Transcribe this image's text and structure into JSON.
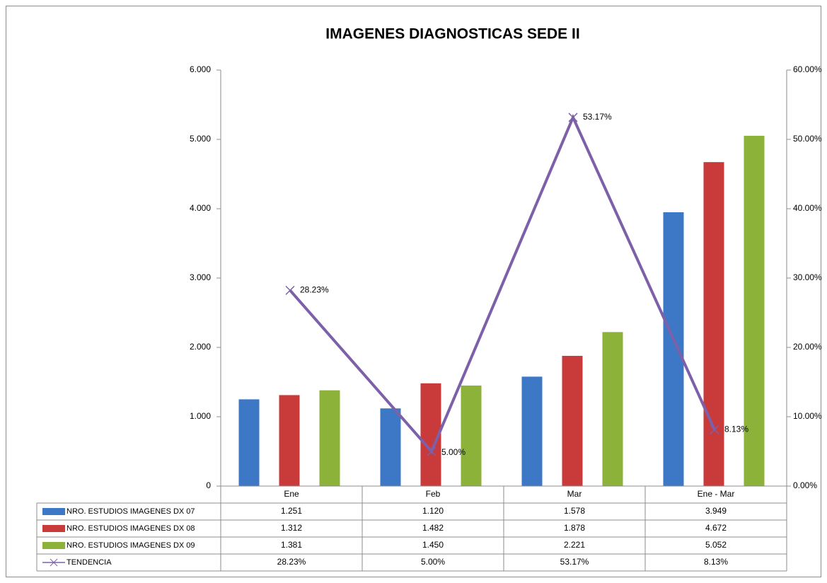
{
  "chart_data": {
    "type": "bar",
    "title": "IMAGENES DIAGNOSTICAS SEDE II",
    "categories": [
      "Ene",
      "Feb",
      "Mar",
      "Ene - Mar"
    ],
    "series": [
      {
        "name": "NRO. ESTUDIOS IMAGENES DX 07",
        "color": "#3c78c6",
        "values": [
          1251,
          1120,
          1578,
          3949
        ],
        "value_labels": [
          "1.251",
          "1.120",
          "1.578",
          "3.949"
        ]
      },
      {
        "name": "NRO. ESTUDIOS IMAGENES DX 08",
        "color": "#c93b3b",
        "values": [
          1312,
          1482,
          1878,
          4672
        ],
        "value_labels": [
          "1.312",
          "1.482",
          "1.878",
          "4.672"
        ]
      },
      {
        "name": "NRO. ESTUDIOS IMAGENES DX 09",
        "color": "#8db23a",
        "values": [
          1381,
          1450,
          2221,
          5052
        ],
        "value_labels": [
          "1.381",
          "1.450",
          "2.221",
          "5.052"
        ]
      },
      {
        "name": "TENDENCIA",
        "type": "line",
        "axis": "y2",
        "color": "#7d60a8",
        "values": [
          28.23,
          5.0,
          53.17,
          8.13
        ],
        "value_labels": [
          "28.23%",
          "5.00%",
          "53.17%",
          "8.13%"
        ]
      }
    ],
    "ylim": [
      0,
      6000
    ],
    "yticks": [
      0,
      {
        "value": 1000,
        "label": "1.000"
      },
      {
        "value": 2000,
        "label": "2.000"
      },
      {
        "value": 3000,
        "label": "3.000"
      },
      {
        "value": 4000,
        "label": "4.000"
      },
      {
        "value": 5000,
        "label": "5.000"
      },
      {
        "value": 6000,
        "label": "6.000"
      }
    ],
    "y2lim": [
      0,
      60
    ],
    "y2ticks": [
      {
        "value": 0,
        "label": "0.00%"
      },
      {
        "value": 10,
        "label": "10.00%"
      },
      {
        "value": 20,
        "label": "20.00%"
      },
      {
        "value": 30,
        "label": "30.00%"
      },
      {
        "value": 40,
        "label": "40.00%"
      },
      {
        "value": 50,
        "label": "50.00%"
      },
      {
        "value": 60,
        "label": "60.00%"
      }
    ]
  }
}
